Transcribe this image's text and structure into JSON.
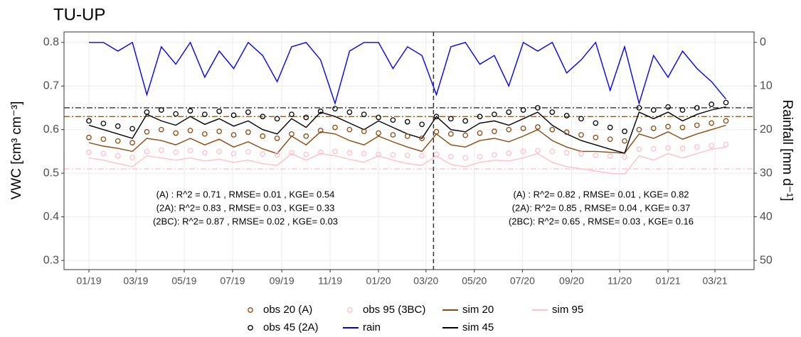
{
  "chart_data": {
    "type": "line",
    "title": "TU-UP",
    "y_label": "VWC [cm³ cm⁻³]",
    "y2_label": "Rainfall [mm d⁻¹]",
    "x": [
      2019,
      2019.05,
      2019.1,
      2019.15,
      2019.2,
      2019.25,
      2019.3,
      2019.35,
      2019.4,
      2019.45,
      2019.5,
      2019.55,
      2019.6,
      2019.65,
      2019.7,
      2019.75,
      2019.8,
      2019.85,
      2019.9,
      2019.95,
      2020,
      2020.05,
      2020.1,
      2020.15,
      2020.2,
      2020.25,
      2020.3,
      2020.35,
      2020.4,
      2020.45,
      2020.5,
      2020.55,
      2020.6,
      2020.65,
      2020.7,
      2020.75,
      2020.8,
      2020.85,
      2020.9,
      2020.95,
      2021,
      2021.05,
      2021.1,
      2021.15,
      2021.2
    ],
    "xlim": [
      2018.914,
      2021.297
    ],
    "xticks": [
      {
        "value": 2019.0,
        "label": "01/19"
      },
      {
        "value": 2019.162,
        "label": "03/19"
      },
      {
        "value": 2019.329,
        "label": "05/19"
      },
      {
        "value": 2019.496,
        "label": "07/19"
      },
      {
        "value": 2019.666,
        "label": "09/19"
      },
      {
        "value": 2019.833,
        "label": "11/19"
      },
      {
        "value": 2020.0,
        "label": "01/20"
      },
      {
        "value": 2020.164,
        "label": "03/20"
      },
      {
        "value": 2020.331,
        "label": "05/20"
      },
      {
        "value": 2020.497,
        "label": "07/20"
      },
      {
        "value": 2020.667,
        "label": "09/20"
      },
      {
        "value": 2020.833,
        "label": "11/20"
      },
      {
        "value": 2021.0,
        "label": "01/21"
      },
      {
        "value": 2021.162,
        "label": "03/21"
      }
    ],
    "ylim": [
      0.279,
      0.824
    ],
    "yticks": [
      0.3,
      0.4,
      0.5,
      0.6,
      0.7,
      0.8
    ],
    "y2lim": [
      -2.4,
      52.1
    ],
    "y2_reversed": true,
    "y2ticks": [
      0,
      10,
      20,
      30,
      40,
      50
    ],
    "grid": true,
    "series": [
      {
        "name": "obs 20 (A)",
        "color": "#8b4a12",
        "style": "points",
        "values": [
          0.582,
          0.578,
          0.574,
          0.57,
          0.595,
          0.6,
          0.592,
          0.598,
          0.59,
          0.596,
          0.588,
          0.594,
          0.585,
          0.58,
          0.59,
          0.585,
          0.598,
          0.605,
          0.6,
          0.596,
          0.592,
          0.588,
          0.585,
          0.58,
          0.595,
          0.59,
          0.587,
          0.592,
          0.596,
          0.6,
          0.603,
          0.606,
          0.6,
          0.594,
          0.588,
          0.582,
          0.578,
          0.574,
          0.6,
          0.603,
          0.607,
          0.605,
          0.61,
          0.615,
          0.62
        ]
      },
      {
        "name": "obs 45 (2A)",
        "color": "#000000",
        "style": "points",
        "values": [
          0.62,
          0.614,
          0.608,
          0.602,
          0.64,
          0.645,
          0.636,
          0.643,
          0.635,
          0.642,
          0.633,
          0.64,
          0.63,
          0.625,
          0.635,
          0.628,
          0.642,
          0.648,
          0.64,
          0.635,
          0.628,
          0.622,
          0.618,
          0.612,
          0.63,
          0.625,
          0.62,
          0.63,
          0.635,
          0.64,
          0.645,
          0.65,
          0.64,
          0.632,
          0.625,
          0.615,
          0.605,
          0.596,
          0.65,
          0.645,
          0.652,
          0.645,
          0.65,
          0.658,
          0.662
        ]
      },
      {
        "name": "obs 95 (3BC)",
        "color": "#ffc0cb",
        "style": "points",
        "values": [
          0.548,
          0.545,
          0.54,
          0.536,
          0.55,
          0.553,
          0.548,
          0.552,
          0.547,
          0.55,
          0.545,
          0.549,
          0.544,
          0.542,
          0.547,
          0.543,
          0.548,
          0.55,
          0.547,
          0.545,
          0.543,
          0.542,
          0.541,
          0.54,
          0.543,
          0.538,
          0.535,
          0.538,
          0.542,
          0.546,
          0.55,
          0.552,
          0.55,
          0.547,
          0.544,
          0.541,
          0.539,
          0.537,
          0.555,
          0.556,
          0.558,
          0.557,
          0.56,
          0.563,
          0.566
        ]
      },
      {
        "name": "rain",
        "color": "#0000ff",
        "style": "line",
        "axis": "y2",
        "values": [
          0,
          0,
          2,
          0,
          12,
          1,
          5,
          0,
          8,
          2,
          6,
          0,
          3,
          9,
          1,
          0,
          4,
          14,
          2,
          0,
          0,
          6,
          1,
          3,
          12,
          1,
          0,
          5,
          3,
          10,
          0,
          2,
          0,
          7,
          4,
          0,
          11,
          1,
          14,
          3,
          8,
          2,
          6,
          9,
          13
        ]
      },
      {
        "name": "sim 20",
        "color": "#8b4a12",
        "style": "line",
        "values": [
          0.57,
          0.562,
          0.557,
          0.55,
          0.58,
          0.575,
          0.565,
          0.58,
          0.565,
          0.578,
          0.56,
          0.572,
          0.556,
          0.545,
          0.585,
          0.565,
          0.595,
          0.59,
          0.575,
          0.565,
          0.585,
          0.572,
          0.56,
          0.55,
          0.59,
          0.565,
          0.56,
          0.575,
          0.58,
          0.572,
          0.585,
          0.6,
          0.575,
          0.56,
          0.55,
          0.55,
          0.548,
          0.546,
          0.59,
          0.58,
          0.595,
          0.578,
          0.59,
          0.6,
          0.61
        ]
      },
      {
        "name": "sim 45",
        "color": "#000000",
        "style": "line",
        "values": [
          0.61,
          0.6,
          0.59,
          0.58,
          0.635,
          0.62,
          0.61,
          0.63,
          0.612,
          0.625,
          0.608,
          0.62,
          0.6,
          0.59,
          0.625,
          0.605,
          0.64,
          0.63,
          0.615,
          0.6,
          0.62,
          0.605,
          0.59,
          0.58,
          0.63,
          0.6,
          0.595,
          0.615,
          0.62,
          0.61,
          0.625,
          0.64,
          0.61,
          0.59,
          0.575,
          0.565,
          0.555,
          0.546,
          0.64,
          0.625,
          0.64,
          0.62,
          0.635,
          0.645,
          0.652
        ]
      },
      {
        "name": "sim 95",
        "color": "#ffc0cb",
        "style": "line",
        "values": [
          0.535,
          0.53,
          0.522,
          0.515,
          0.54,
          0.535,
          0.53,
          0.535,
          0.528,
          0.532,
          0.525,
          0.53,
          0.522,
          0.518,
          0.545,
          0.53,
          0.545,
          0.54,
          0.532,
          0.525,
          0.54,
          0.53,
          0.522,
          0.518,
          0.54,
          0.52,
          0.515,
          0.525,
          0.53,
          0.528,
          0.535,
          0.545,
          0.525,
          0.515,
          0.51,
          0.505,
          0.5,
          0.498,
          0.54,
          0.53,
          0.545,
          0.535,
          0.545,
          0.555,
          0.56
        ]
      }
    ],
    "hlines": [
      {
        "value": 0.65,
        "color": "#000000"
      },
      {
        "value": 0.63,
        "color": "#8b4a12"
      },
      {
        "value": 0.51,
        "color": "#ffc0cb"
      }
    ],
    "vlines": [
      {
        "value": 2020.19,
        "color": "#333333"
      }
    ],
    "annotations": [
      [
        "(A) : R^2 = 0.71 , RMSE= 0.01 , KGE= 0.54",
        "(2A): R^2= 0.83 , RMSE= 0.03 , KGE= 0.33",
        "(2BC): R^2= 0.87 , RMSE= 0.02 , KGE= 0.03"
      ],
      [
        "(A) : R^2= 0.82 , RMSE= 0.01 , KGE= 0.82",
        "(2A): R^2= 0.85 , RMSE= 0.04 , KGE= 0.37",
        "(2BC): R^2= 0.65 , RMSE= 0.03 , KGE= 0.16"
      ]
    ]
  }
}
